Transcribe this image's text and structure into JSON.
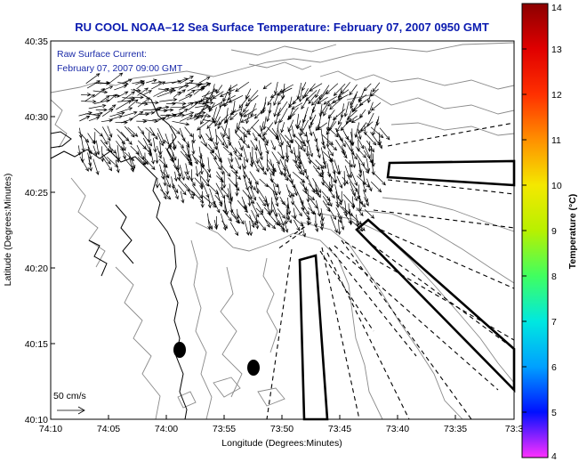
{
  "title": "RU COOL  NOAA–12  Sea Surface Temperature:  February 07, 2007 0950 GMT",
  "overlay": {
    "line1": "Raw Surface Current:",
    "line2": "February 07, 2007 09:00 GMT"
  },
  "scale_label": "50 cm/s",
  "axes": {
    "xlabel": "Longitude (Degrees:Minutes)",
    "ylabel": "Latitude (Degrees:Minutes)",
    "xticks": [
      "74:10",
      "74:05",
      "74:00",
      "73:55",
      "73:50",
      "73:45",
      "73:40",
      "73:35",
      "73:3"
    ],
    "yticks": [
      "40:35",
      "40:30",
      "40:25",
      "40:20",
      "40:15",
      "40:10"
    ]
  },
  "colorbar": {
    "label": "Temperature (°C)",
    "ticks": [
      "14",
      "13",
      "12",
      "11",
      "10",
      "9",
      "8",
      "7",
      "6",
      "5",
      "4"
    ],
    "colors": {
      "c14": "#8b0000",
      "c13": "#e00000",
      "c12": "#ff3000",
      "c11": "#ff9000",
      "c10": "#f4e800",
      "c9": "#b8f000",
      "c8": "#40ff60",
      "c7": "#00e8e0",
      "c6": "#00a0ff",
      "c5": "#0010ff",
      "c4": "#ff30ff"
    }
  }
}
